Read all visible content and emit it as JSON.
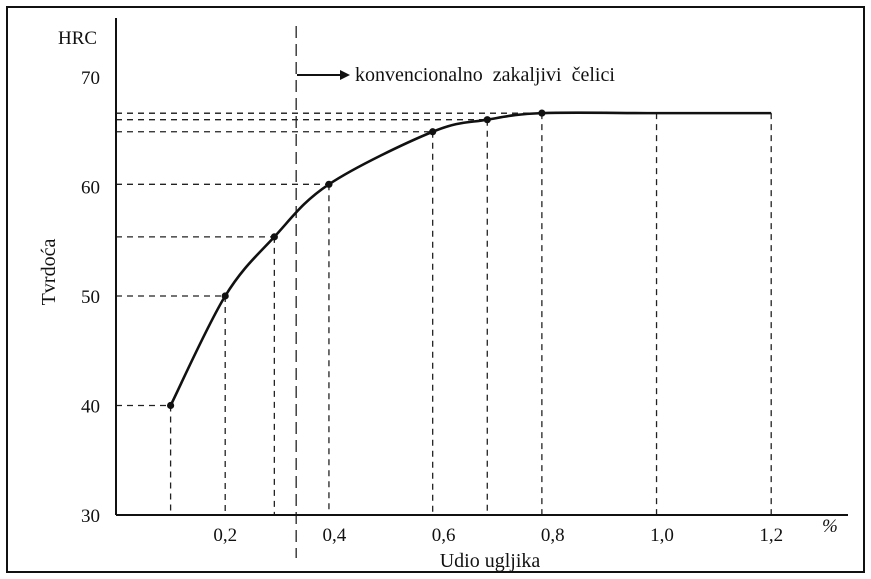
{
  "chart_data": {
    "type": "line",
    "ylabel": "Tvrdoća",
    "y_unit": "HRC",
    "xlabel": "Udio ugljika",
    "x_unit": "%",
    "xlim": [
      0,
      1.25
    ],
    "ylim": [
      30,
      72
    ],
    "x_tick_labels": [
      "0,2",
      "0,4",
      "0,6",
      "0,8",
      "1,0",
      "1,2"
    ],
    "x_ticks": [
      0.2,
      0.4,
      0.6,
      0.8,
      1.0,
      1.2
    ],
    "y_tick_labels": [
      "30",
      "40",
      "50",
      "60",
      "70"
    ],
    "y_ticks": [
      30,
      40,
      50,
      60,
      70
    ],
    "grid": false,
    "series": [
      {
        "x": [
          0.1,
          0.2,
          0.29,
          0.39,
          0.58,
          0.68,
          0.78,
          0.99,
          1.2
        ],
        "y": [
          40,
          50,
          55.4,
          60.2,
          65,
          66.1,
          66.7,
          66.7,
          66.7
        ],
        "markers": [
          true,
          true,
          true,
          true,
          true,
          true,
          true,
          false,
          false
        ]
      }
    ],
    "annotations": {
      "threshold_x": 0.33,
      "threshold_label": "konvencionalno  zakaljivi  čelici"
    }
  }
}
